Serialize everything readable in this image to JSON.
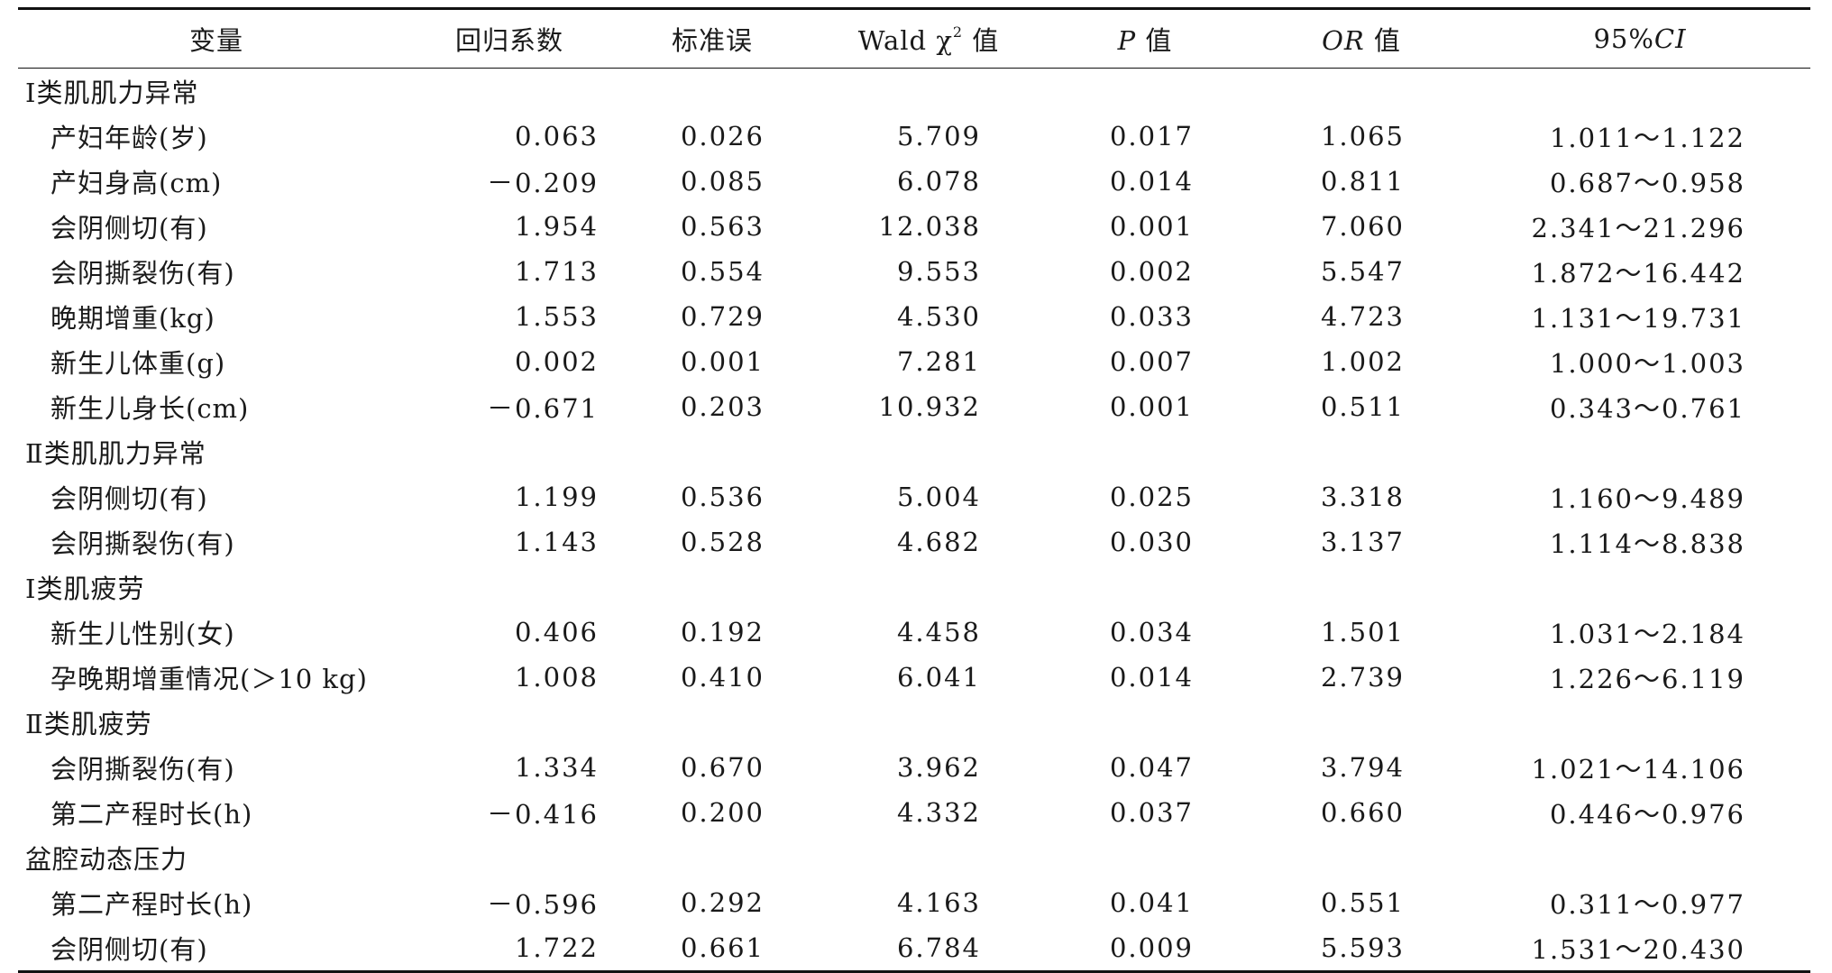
{
  "headers": {
    "variable": "变量",
    "coef": "回归系数",
    "se": "标准误",
    "wald_prefix": "Wald χ",
    "wald_sup": "2",
    "wald_suffix": " 值",
    "p_italic": "P",
    "p_suffix": " 值",
    "or_italic": "OR",
    "or_suffix": " 值",
    "ci_prefix": "95%",
    "ci_italic": "CI"
  },
  "groups": [
    {
      "title": "Ⅰ类肌肌力异常",
      "rows": [
        {
          "name": "产妇年龄(岁)",
          "coef": "0.063",
          "se": "0.026",
          "wald": "5.709",
          "p": "0.017",
          "or": "1.065",
          "ci": "1.011～1.122"
        },
        {
          "name": "产妇身高(cm)",
          "coef": "－0.209",
          "se": "0.085",
          "wald": "6.078",
          "p": "0.014",
          "or": "0.811",
          "ci": "0.687～0.958"
        },
        {
          "name": "会阴侧切(有)",
          "coef": "1.954",
          "se": "0.563",
          "wald": "12.038",
          "p": "0.001",
          "or": "7.060",
          "ci": "2.341～21.296"
        },
        {
          "name": "会阴撕裂伤(有)",
          "coef": "1.713",
          "se": "0.554",
          "wald": "9.553",
          "p": "0.002",
          "or": "5.547",
          "ci": "1.872～16.442"
        },
        {
          "name": "晚期增重(kg)",
          "coef": "1.553",
          "se": "0.729",
          "wald": "4.530",
          "p": "0.033",
          "or": "4.723",
          "ci": "1.131～19.731"
        },
        {
          "name": "新生儿体重(g)",
          "coef": "0.002",
          "se": "0.001",
          "wald": "7.281",
          "p": "0.007",
          "or": "1.002",
          "ci": "1.000～1.003"
        },
        {
          "name": "新生儿身长(cm)",
          "coef": "－0.671",
          "se": "0.203",
          "wald": "10.932",
          "p": "0.001",
          "or": "0.511",
          "ci": "0.343～0.761"
        }
      ]
    },
    {
      "title": "Ⅱ类肌肌力异常",
      "rows": [
        {
          "name": "会阴侧切(有)",
          "coef": "1.199",
          "se": "0.536",
          "wald": "5.004",
          "p": "0.025",
          "or": "3.318",
          "ci": "1.160～9.489"
        },
        {
          "name": "会阴撕裂伤(有)",
          "coef": "1.143",
          "se": "0.528",
          "wald": "4.682",
          "p": "0.030",
          "or": "3.137",
          "ci": "1.114～8.838"
        }
      ]
    },
    {
      "title": "Ⅰ类肌疲劳",
      "rows": [
        {
          "name": "新生儿性别(女)",
          "coef": "0.406",
          "se": "0.192",
          "wald": "4.458",
          "p": "0.034",
          "or": "1.501",
          "ci": "1.031～2.184"
        },
        {
          "name": "孕晚期增重情况(＞10 kg)",
          "coef": "1.008",
          "se": "0.410",
          "wald": "6.041",
          "p": "0.014",
          "or": "2.739",
          "ci": "1.226～6.119"
        }
      ]
    },
    {
      "title": "Ⅱ类肌疲劳",
      "rows": [
        {
          "name": "会阴撕裂伤(有)",
          "coef": "1.334",
          "se": "0.670",
          "wald": "3.962",
          "p": "0.047",
          "or": "3.794",
          "ci": "1.021～14.106"
        },
        {
          "name": "第二产程时长(h)",
          "coef": "－0.416",
          "se": "0.200",
          "wald": "4.332",
          "p": "0.037",
          "or": "0.660",
          "ci": "0.446～0.976"
        }
      ]
    },
    {
      "title": "盆腔动态压力",
      "rows": [
        {
          "name": "第二产程时长(h)",
          "coef": "－0.596",
          "se": "0.292",
          "wald": "4.163",
          "p": "0.041",
          "or": "0.551",
          "ci": "0.311～0.977"
        },
        {
          "name": "会阴侧切(有)",
          "coef": "1.722",
          "se": "0.661",
          "wald": "6.784",
          "p": "0.009",
          "or": "5.593",
          "ci": "1.531～20.430"
        }
      ]
    }
  ]
}
